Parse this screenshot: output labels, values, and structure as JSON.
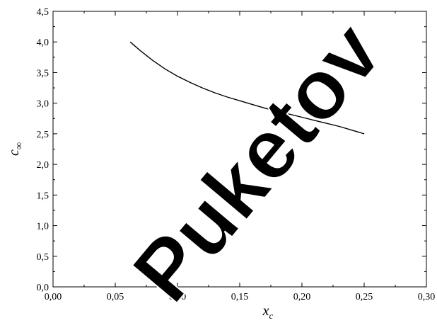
{
  "chart_data": {
    "type": "line",
    "xlabel": "x",
    "xlabel_sub": "c",
    "ylabel": "c",
    "ylabel_sub": "∞",
    "xlim": [
      0.0,
      0.3
    ],
    "ylim": [
      0.0,
      4.5
    ],
    "xticks": [
      0.0,
      0.05,
      0.1,
      0.15,
      0.2,
      0.25,
      0.3
    ],
    "xtick_labels": [
      "0,00",
      "0,05",
      "0,10",
      "0,15",
      "0,20",
      "0,25",
      "0,30"
    ],
    "yticks": [
      0.0,
      0.5,
      1.0,
      1.5,
      2.0,
      2.5,
      3.0,
      3.5,
      4.0,
      4.5
    ],
    "ytick_labels": [
      "0,0",
      "0,5",
      "1,0",
      "1,5",
      "2,0",
      "2,5",
      "3,0",
      "3,5",
      "4,0",
      "4,5"
    ],
    "grid": false,
    "series": [
      {
        "x": [
          0.062,
          0.07,
          0.08,
          0.09,
          0.1,
          0.11,
          0.12,
          0.13,
          0.14,
          0.15,
          0.16,
          0.17,
          0.18,
          0.19,
          0.2,
          0.21,
          0.22,
          0.23,
          0.24,
          0.25
        ],
        "y": [
          4.0,
          3.86,
          3.7,
          3.56,
          3.44,
          3.34,
          3.25,
          3.17,
          3.1,
          3.04,
          2.98,
          2.92,
          2.87,
          2.82,
          2.77,
          2.72,
          2.67,
          2.62,
          2.56,
          2.5
        ],
        "color": "#000000"
      }
    ]
  },
  "watermark": {
    "text": "Puketov",
    "color": "#000000"
  }
}
